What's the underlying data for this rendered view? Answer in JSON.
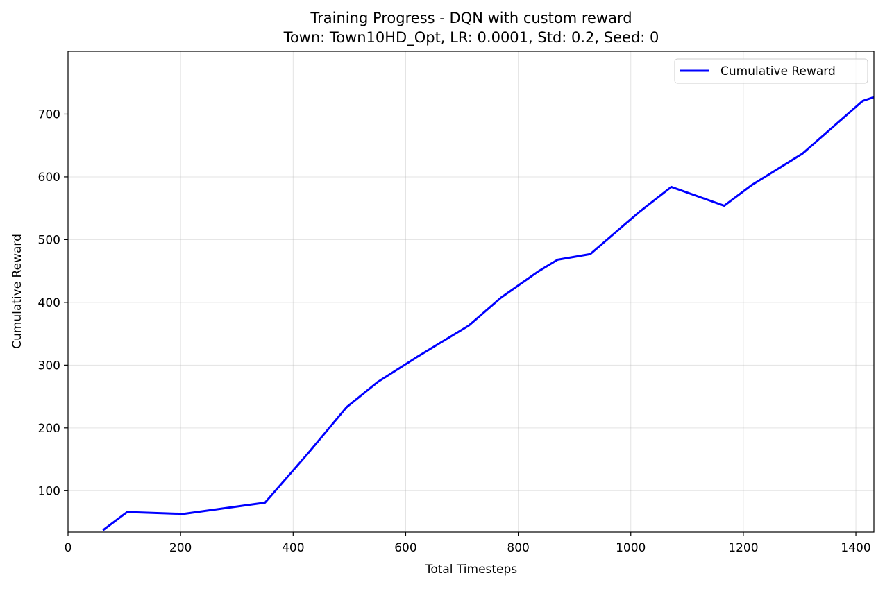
{
  "chart_data": {
    "type": "line",
    "title": "Training Progress - DQN with custom reward",
    "subtitle": "Town: Town10HD_Opt, LR: 0.0001, Std: 0.2, Seed: 0",
    "xlabel": "Total Timesteps",
    "ylabel": "Cumulative Reward",
    "xlim": [
      0,
      1432
    ],
    "ylim": [
      34,
      800
    ],
    "xticks": [
      0,
      200,
      400,
      600,
      800,
      1000,
      1200,
      1400
    ],
    "yticks": [
      100,
      200,
      300,
      400,
      500,
      600,
      700
    ],
    "grid": true,
    "legend": "upper right",
    "series": [
      {
        "name": "Cumulative Reward",
        "color": "#0000ff",
        "x": [
          62,
          105,
          205,
          350,
          425,
          495,
          550,
          620,
          712,
          770,
          835,
          870,
          928,
          1015,
          1072,
          1166,
          1215,
          1305,
          1412,
          1432
        ],
        "y": [
          37,
          66,
          63,
          81,
          158,
          233,
          273,
          313,
          363,
          408,
          449,
          468,
          477,
          544,
          584,
          554,
          587,
          637,
          721,
          727
        ]
      }
    ]
  }
}
